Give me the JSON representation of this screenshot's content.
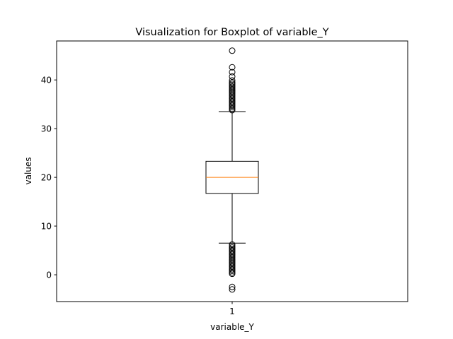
{
  "chart_data": {
    "type": "boxplot",
    "title": "Visualization for Boxplot of variable_Y",
    "xlabel": "variable_Y",
    "ylabel": "values",
    "ylim": [
      -5.5,
      48.0
    ],
    "yticks": [
      0,
      10,
      20,
      30,
      40
    ],
    "categories": [
      "1"
    ],
    "grid": false,
    "legend": "none",
    "colors": {
      "box": "#000000",
      "median": "#ff7f0e",
      "frame": "#000000"
    },
    "boxes": [
      {
        "category": "1",
        "whisker_low": 6.5,
        "q1": 16.7,
        "median": 20.0,
        "q3": 23.3,
        "whisker_high": 33.5,
        "outliers": [
          46.0,
          42.6,
          41.6,
          40.7,
          39.9,
          39.5,
          39.2,
          38.9,
          38.6,
          38.3,
          38.0,
          37.7,
          37.4,
          37.1,
          36.8,
          36.5,
          36.2,
          35.9,
          35.6,
          35.3,
          35.0,
          34.7,
          34.4,
          34.1,
          33.8,
          6.2,
          5.9,
          5.6,
          5.3,
          5.0,
          4.7,
          4.4,
          4.1,
          3.8,
          3.5,
          3.2,
          2.9,
          2.6,
          2.3,
          2.0,
          1.7,
          1.4,
          1.1,
          0.8,
          0.5,
          0.2,
          -2.5,
          -3.0
        ]
      }
    ]
  }
}
